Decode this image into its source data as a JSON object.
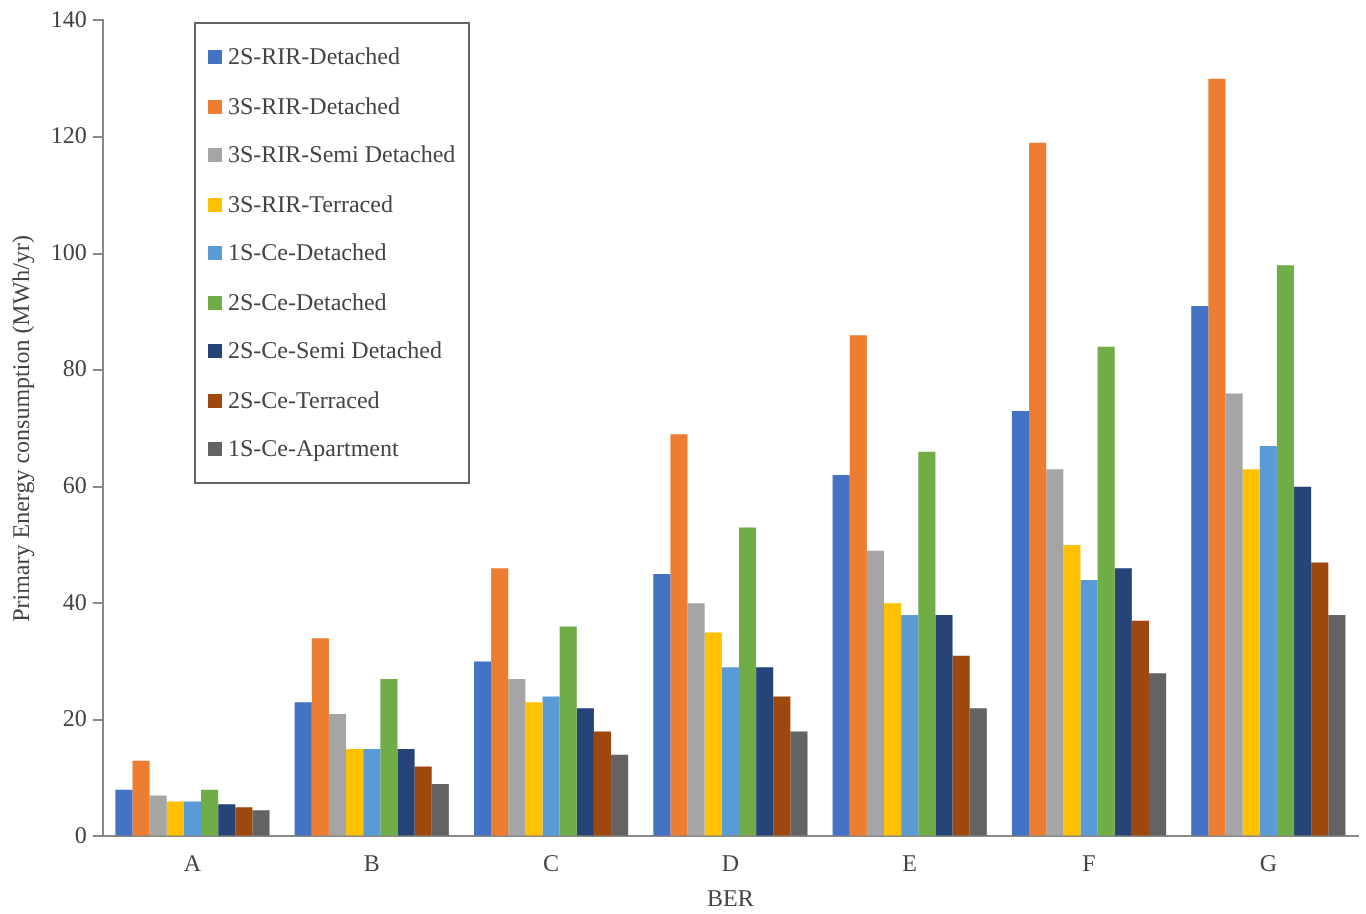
{
  "chart_data": {
    "type": "bar",
    "xlabel": "BER",
    "ylabel": "Primary Energy consumption (MWh/yr)",
    "categories": [
      "A",
      "B",
      "C",
      "D",
      "E",
      "F",
      "G"
    ],
    "ylim": [
      0,
      140
    ],
    "yticks": [
      0,
      20,
      40,
      60,
      80,
      100,
      120,
      140
    ],
    "grid": false,
    "legend": "top left",
    "series": [
      {
        "name": "2S-RIR-Detached",
        "color": "#4472c4",
        "values": [
          8,
          23,
          30,
          45,
          62,
          73,
          91
        ]
      },
      {
        "name": "3S-RIR-Detached",
        "color": "#ed7d31",
        "values": [
          13,
          34,
          46,
          69,
          86,
          119,
          130
        ]
      },
      {
        "name": "3S-RIR-Semi Detached",
        "color": "#a5a5a5",
        "values": [
          7,
          21,
          27,
          40,
          49,
          63,
          76
        ]
      },
      {
        "name": "3S-RIR-Terraced",
        "color": "#ffc000",
        "values": [
          6,
          15,
          23,
          35,
          40,
          50,
          63
        ]
      },
      {
        "name": "1S-Ce-Detached",
        "color": "#5b9bd5",
        "values": [
          6,
          15,
          24,
          29,
          38,
          44,
          67
        ]
      },
      {
        "name": "2S-Ce-Detached",
        "color": "#70ad47",
        "values": [
          8,
          27,
          36,
          53,
          66,
          84,
          98
        ]
      },
      {
        "name": "2S-Ce-Semi Detached",
        "color": "#264478",
        "values": [
          5.5,
          15,
          22,
          29,
          38,
          46,
          60
        ]
      },
      {
        "name": "2S-Ce-Terraced",
        "color": "#9e480e",
        "values": [
          5,
          12,
          18,
          24,
          31,
          37,
          47
        ]
      },
      {
        "name": "1S-Ce-Apartment",
        "color": "#636363",
        "values": [
          4.5,
          9,
          14,
          18,
          22,
          28,
          38
        ]
      }
    ]
  }
}
